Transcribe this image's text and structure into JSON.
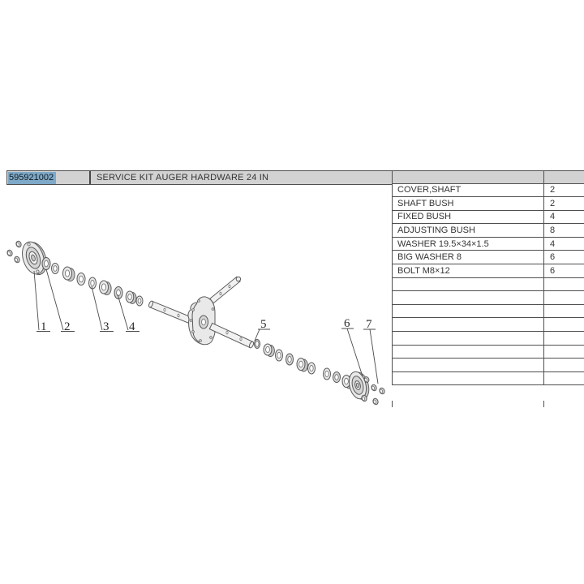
{
  "header": {
    "part_number": "595921002",
    "description": "SERVICE KIT AUGER HARDWARE 24 IN"
  },
  "parts_table": {
    "header": {
      "name": "",
      "qty": ""
    },
    "rows": [
      {
        "name": "COVER,SHAFT",
        "qty": "2"
      },
      {
        "name": "SHAFT BUSH",
        "qty": "2"
      },
      {
        "name": "FIXED BUSH",
        "qty": "4"
      },
      {
        "name": "ADJUSTING BUSH",
        "qty": "8"
      },
      {
        "name": "WASHER 19.5×34×1.5",
        "qty": "4"
      },
      {
        "name": "BIG WASHER 8",
        "qty": "6"
      },
      {
        "name": "BOLT M8×12",
        "qty": "6"
      }
    ],
    "empty_rows": 8
  },
  "diagram": {
    "callouts": [
      "1",
      "2",
      "3",
      "4",
      "5",
      "6",
      "7"
    ]
  },
  "colors": {
    "highlight": "#7ea9c8",
    "header_gray": "#d2d2d2",
    "border": "#4f4f4f",
    "line": "#5a5a5a",
    "text": "#2f2f2f"
  }
}
